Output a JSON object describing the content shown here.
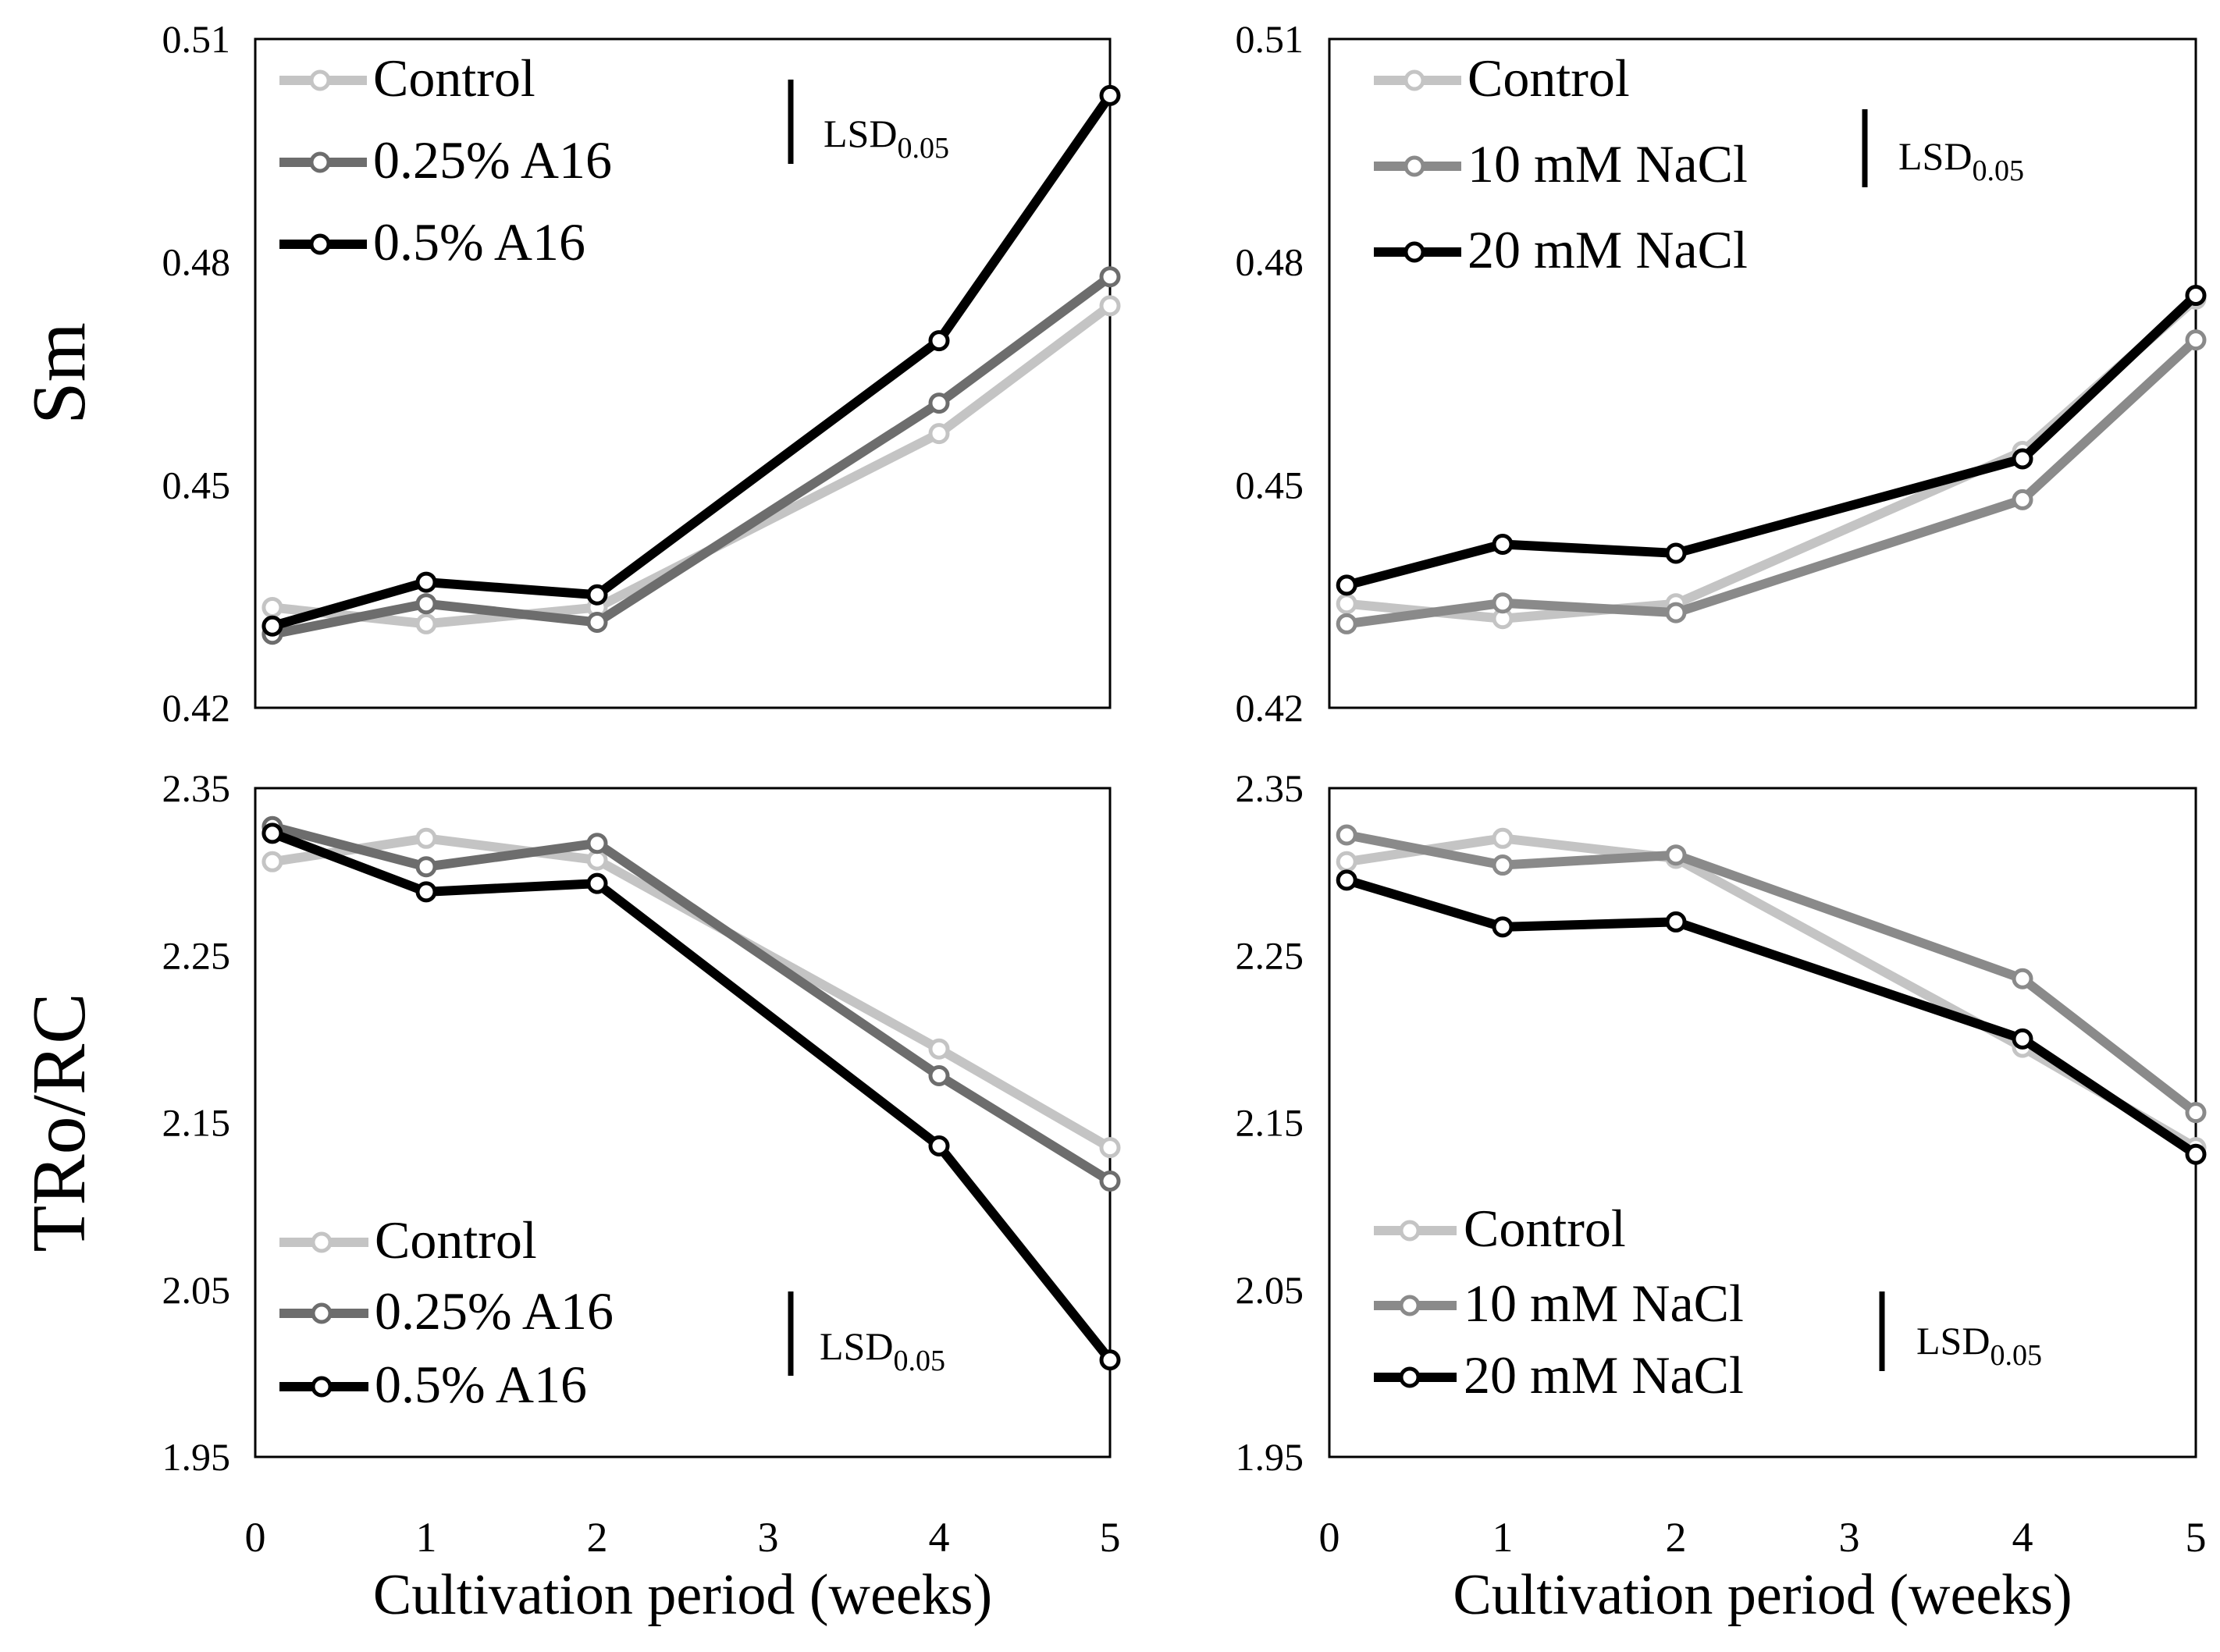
{
  "colors": {
    "control": "#c4c4c4",
    "mid": "#6d6d6d",
    "mid_nacl": "#8a8a8a",
    "high": "#000000",
    "frame": "#000000"
  },
  "y_axis_labels": [
    "Sm",
    "TRo/RC"
  ],
  "x_axis_label": "Cultivation period (weeks)",
  "chart_data": [
    {
      "type": "line",
      "id": "sm-a16",
      "ylabel": "Sm",
      "xlabel": "",
      "ylim": [
        0.42,
        0.51
      ],
      "xlim": [
        0,
        5
      ],
      "yticks": [
        "0.51",
        "0.48",
        "0.45",
        "0.42"
      ],
      "xticks": [],
      "x": [
        0.1,
        1,
        2,
        4,
        5
      ],
      "lsd_label": "LSD",
      "lsd_sub": "0.05",
      "series": [
        {
          "name": "Control",
          "values": [
            0.4335,
            0.4313,
            0.4335,
            0.4569,
            0.4741
          ]
        },
        {
          "name": "0.25% A16",
          "values": [
            0.4299,
            0.434,
            0.4315,
            0.461,
            0.478
          ]
        },
        {
          "name": "0.5% A16",
          "values": [
            0.431,
            0.4369,
            0.4352,
            0.4694,
            0.5024
          ]
        }
      ]
    },
    {
      "type": "line",
      "id": "sm-nacl",
      "ylabel": "",
      "xlabel": "",
      "ylim": [
        0.42,
        0.51
      ],
      "xlim": [
        0,
        5
      ],
      "yticks": [
        "0.51",
        "0.48",
        "0.45",
        "0.42"
      ],
      "xticks": [],
      "x": [
        0.1,
        1,
        2,
        4,
        5
      ],
      "lsd_label": "LSD",
      "lsd_sub": "0.05",
      "series": [
        {
          "name": "Control",
          "values": [
            0.434,
            0.432,
            0.434,
            0.4545,
            0.475
          ]
        },
        {
          "name": "10 mM NaCl",
          "values": [
            0.4313,
            0.4341,
            0.4328,
            0.448,
            0.4695
          ]
        },
        {
          "name": "20 mM NaCl",
          "values": [
            0.4365,
            0.442,
            0.4408,
            0.4535,
            0.4755
          ]
        }
      ]
    },
    {
      "type": "line",
      "id": "tro-a16",
      "ylabel": "TRo/RC",
      "xlabel": "Cultivation period (weeks)",
      "ylim": [
        1.95,
        2.35
      ],
      "xlim": [
        0,
        5
      ],
      "yticks": [
        "2.35",
        "2.25",
        "2.15",
        "2.05",
        "1.95"
      ],
      "xticks": [
        "0",
        "1",
        "2",
        "3",
        "4",
        "5"
      ],
      "x": [
        0.1,
        1,
        2,
        4,
        5
      ],
      "lsd_label": "LSD",
      "lsd_sub": "0.05",
      "series": [
        {
          "name": "Control",
          "values": [
            2.306,
            2.32,
            2.307,
            2.194,
            2.135
          ]
        },
        {
          "name": "0.25% A16",
          "values": [
            2.327,
            2.303,
            2.317,
            2.178,
            2.115
          ]
        },
        {
          "name": "0.5% A16",
          "values": [
            2.323,
            2.288,
            2.293,
            2.136,
            2.008
          ]
        }
      ]
    },
    {
      "type": "line",
      "id": "tro-nacl",
      "ylabel": "",
      "xlabel": "Cultivation period (weeks)",
      "ylim": [
        1.95,
        2.35
      ],
      "xlim": [
        0,
        5
      ],
      "yticks": [
        "2.35",
        "2.25",
        "2.15",
        "2.05",
        "1.95"
      ],
      "xticks": [
        "0",
        "1",
        "2",
        "3",
        "4",
        "5"
      ],
      "x": [
        0.1,
        1,
        2,
        4,
        5
      ],
      "lsd_label": "LSD",
      "lsd_sub": "0.05",
      "series": [
        {
          "name": "Control",
          "values": [
            2.306,
            2.32,
            2.308,
            2.195,
            2.135
          ]
        },
        {
          "name": "10 mM NaCl",
          "values": [
            2.322,
            2.304,
            2.31,
            2.236,
            2.156
          ]
        },
        {
          "name": "20 mM NaCl",
          "values": [
            2.295,
            2.267,
            2.27,
            2.2,
            2.131
          ]
        }
      ]
    }
  ]
}
